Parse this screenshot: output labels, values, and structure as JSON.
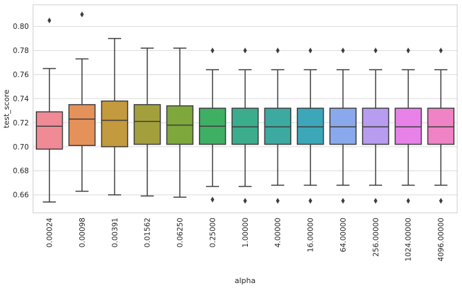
{
  "chart_data": {
    "type": "box",
    "xlabel": "alpha",
    "ylabel": "test_score",
    "ylim": [
      0.645,
      0.818
    ],
    "yticks": [
      0.66,
      0.68,
      0.7,
      0.72,
      0.74,
      0.76,
      0.78,
      0.8
    ],
    "ytick_labels": [
      "0.66",
      "0.68",
      "0.70",
      "0.72",
      "0.74",
      "0.76",
      "0.78",
      "0.80"
    ],
    "grid": true,
    "categories": [
      "0.00024",
      "0.00098",
      "0.00391",
      "0.01562",
      "0.06250",
      "0.25000",
      "1.00000",
      "4.00000",
      "16.00000",
      "64.00000",
      "256.00000",
      "1024.00000",
      "4096.00000"
    ],
    "boxes": [
      {
        "whisker_low": 0.654,
        "q1": 0.698,
        "median": 0.717,
        "q3": 0.729,
        "whisker_high": 0.765,
        "outliers": [
          0.805
        ]
      },
      {
        "whisker_low": 0.663,
        "q1": 0.701,
        "median": 0.723,
        "q3": 0.735,
        "whisker_high": 0.773,
        "outliers": [
          0.81
        ]
      },
      {
        "whisker_low": 0.66,
        "q1": 0.7,
        "median": 0.722,
        "q3": 0.738,
        "whisker_high": 0.79,
        "outliers": []
      },
      {
        "whisker_low": 0.659,
        "q1": 0.702,
        "median": 0.721,
        "q3": 0.735,
        "whisker_high": 0.782,
        "outliers": []
      },
      {
        "whisker_low": 0.658,
        "q1": 0.702,
        "median": 0.718,
        "q3": 0.734,
        "whisker_high": 0.782,
        "outliers": []
      },
      {
        "whisker_low": 0.667,
        "q1": 0.702,
        "median": 0.717,
        "q3": 0.732,
        "whisker_high": 0.764,
        "outliers": [
          0.656,
          0.78
        ]
      },
      {
        "whisker_low": 0.667,
        "q1": 0.702,
        "median": 0.7165,
        "q3": 0.732,
        "whisker_high": 0.764,
        "outliers": [
          0.655,
          0.78
        ]
      },
      {
        "whisker_low": 0.668,
        "q1": 0.702,
        "median": 0.7165,
        "q3": 0.732,
        "whisker_high": 0.764,
        "outliers": [
          0.655,
          0.78
        ]
      },
      {
        "whisker_low": 0.668,
        "q1": 0.702,
        "median": 0.7165,
        "q3": 0.732,
        "whisker_high": 0.764,
        "outliers": [
          0.655,
          0.78
        ]
      },
      {
        "whisker_low": 0.668,
        "q1": 0.702,
        "median": 0.7165,
        "q3": 0.732,
        "whisker_high": 0.764,
        "outliers": [
          0.655,
          0.78
        ]
      },
      {
        "whisker_low": 0.668,
        "q1": 0.702,
        "median": 0.7165,
        "q3": 0.732,
        "whisker_high": 0.764,
        "outliers": [
          0.655,
          0.78
        ]
      },
      {
        "whisker_low": 0.668,
        "q1": 0.702,
        "median": 0.7165,
        "q3": 0.732,
        "whisker_high": 0.764,
        "outliers": [
          0.655,
          0.78
        ]
      },
      {
        "whisker_low": 0.668,
        "q1": 0.702,
        "median": 0.7165,
        "q3": 0.732,
        "whisker_high": 0.764,
        "outliers": [
          0.655,
          0.78
        ]
      }
    ],
    "colors": [
      "#f08b96",
      "#e4915a",
      "#c39a3e",
      "#a39f3c",
      "#7fa83c",
      "#3faf64",
      "#3bad8c",
      "#3caaa0",
      "#3ca7b8",
      "#8aa9ec",
      "#b79cf0",
      "#e882e8",
      "#ef83c6"
    ],
    "style": {
      "background": "#ffffff",
      "grid_color": "#d9d9d9",
      "spine_color": "#cccccc",
      "box_edge_color": "#3d3d3d",
      "outlier_marker": "diamond"
    }
  }
}
